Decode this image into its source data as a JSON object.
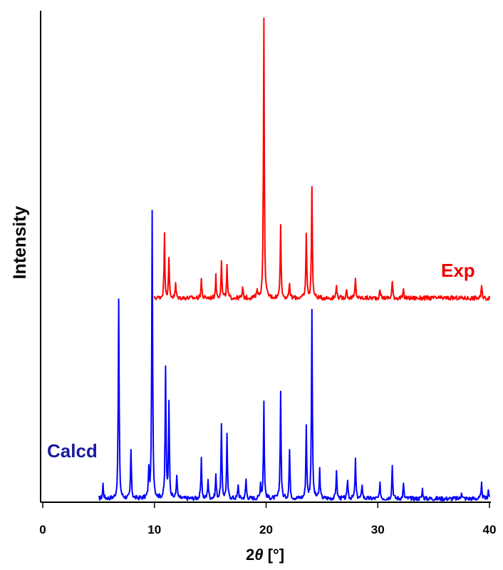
{
  "chart_data": {
    "type": "line",
    "title": "",
    "xlabel_prefix": "2",
    "xlabel_theta": "θ",
    "xlabel_suffix": " [°]",
    "ylabel": "Intensity",
    "xlim": [
      0,
      40
    ],
    "ylim": [
      0,
      100
    ],
    "x_ticks": [
      "0",
      "10",
      "20",
      "30",
      "40"
    ],
    "grid": false,
    "legend": "none",
    "series": [
      {
        "name": "Calcd",
        "color": "#0000ff",
        "label_color": "#1a1aa0",
        "label_position": "left",
        "x_start": 5.0,
        "x_end": 40.0,
        "x_step": 0.05,
        "baseline": 0.6,
        "peaks": [
          {
            "x": 5.4,
            "h": 3.0
          },
          {
            "x": 6.8,
            "h": 41.0
          },
          {
            "x": 7.9,
            "h": 10.0
          },
          {
            "x": 9.5,
            "h": 6.0
          },
          {
            "x": 9.8,
            "h": 59.0
          },
          {
            "x": 11.0,
            "h": 27.0
          },
          {
            "x": 11.3,
            "h": 20.0
          },
          {
            "x": 12.0,
            "h": 5.0
          },
          {
            "x": 14.2,
            "h": 8.0
          },
          {
            "x": 14.8,
            "h": 4.0
          },
          {
            "x": 15.5,
            "h": 5.0
          },
          {
            "x": 16.0,
            "h": 15.0
          },
          {
            "x": 16.5,
            "h": 13.0
          },
          {
            "x": 17.5,
            "h": 3.0
          },
          {
            "x": 18.2,
            "h": 4.0
          },
          {
            "x": 19.5,
            "h": 3.0
          },
          {
            "x": 19.8,
            "h": 20.0
          },
          {
            "x": 21.3,
            "h": 22.0
          },
          {
            "x": 22.1,
            "h": 10.0
          },
          {
            "x": 23.6,
            "h": 15.0
          },
          {
            "x": 24.1,
            "h": 39.0
          },
          {
            "x": 24.8,
            "h": 6.0
          },
          {
            "x": 26.3,
            "h": 6.0
          },
          {
            "x": 27.3,
            "h": 4.0
          },
          {
            "x": 28.0,
            "h": 8.0
          },
          {
            "x": 28.6,
            "h": 3.0
          },
          {
            "x": 30.2,
            "h": 3.0
          },
          {
            "x": 31.3,
            "h": 7.0
          },
          {
            "x": 32.3,
            "h": 3.0
          },
          {
            "x": 34.0,
            "h": 2.0
          },
          {
            "x": 37.5,
            "h": 1.5
          },
          {
            "x": 39.3,
            "h": 3.0
          },
          {
            "x": 39.9,
            "h": 2.0
          }
        ]
      },
      {
        "name": "Exp",
        "color": "#ff0000",
        "label_color": "#ee0000",
        "label_position": "right",
        "x_start": 10.0,
        "x_end": 40.0,
        "x_step": 0.05,
        "baseline": 42.0,
        "peaks": [
          {
            "x": 10.9,
            "h": 13.0
          },
          {
            "x": 11.3,
            "h": 8.0
          },
          {
            "x": 11.9,
            "h": 3.0
          },
          {
            "x": 14.2,
            "h": 4.0
          },
          {
            "x": 15.5,
            "h": 4.5
          },
          {
            "x": 16.0,
            "h": 7.5
          },
          {
            "x": 16.5,
            "h": 6.5
          },
          {
            "x": 17.9,
            "h": 2.0
          },
          {
            "x": 19.2,
            "h": 2.0
          },
          {
            "x": 19.8,
            "h": 58.0
          },
          {
            "x": 21.3,
            "h": 15.5
          },
          {
            "x": 22.1,
            "h": 3.0
          },
          {
            "x": 23.6,
            "h": 13.5
          },
          {
            "x": 24.1,
            "h": 23.0
          },
          {
            "x": 26.3,
            "h": 3.0
          },
          {
            "x": 27.2,
            "h": 2.0
          },
          {
            "x": 28.0,
            "h": 4.0
          },
          {
            "x": 30.2,
            "h": 2.0
          },
          {
            "x": 31.3,
            "h": 3.5
          },
          {
            "x": 32.3,
            "h": 1.5
          },
          {
            "x": 39.3,
            "h": 2.5
          }
        ]
      }
    ]
  }
}
